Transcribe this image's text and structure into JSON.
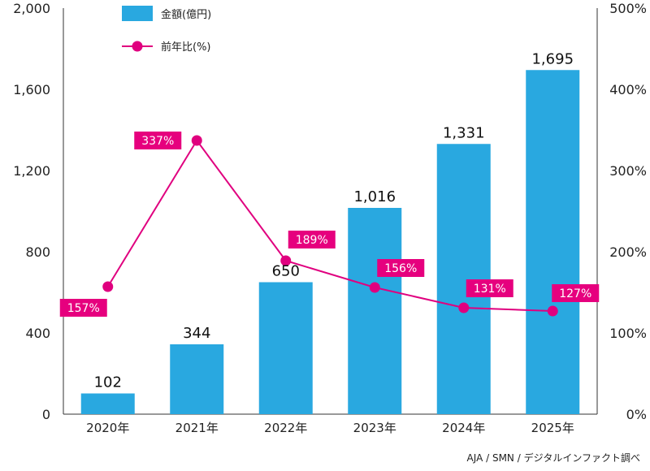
{
  "chart_data": {
    "type": "bar",
    "categories": [
      "2020年",
      "2021年",
      "2022年",
      "2023年",
      "2024年",
      "2025年"
    ],
    "series": [
      {
        "name": "金額(億円)",
        "type": "bar",
        "axis": "left",
        "values": [
          102,
          344,
          650,
          1016,
          1331,
          1695
        ],
        "value_labels": [
          "102",
          "344",
          "650",
          "1,016",
          "1,331",
          "1,695"
        ]
      },
      {
        "name": "前年比(%)",
        "type": "line",
        "axis": "right",
        "values": [
          157,
          337,
          189,
          156,
          131,
          127
        ],
        "value_labels": [
          "157%",
          "337%",
          "189%",
          "156%",
          "131%",
          "127%"
        ]
      }
    ],
    "y_left": {
      "range": [
        0,
        2000
      ],
      "ticks": [
        "0",
        "400",
        "800",
        "1,200",
        "1,600",
        "2,000"
      ]
    },
    "y_right": {
      "range": [
        0,
        500
      ],
      "ticks": [
        "0%",
        "100%",
        "200%",
        "300%",
        "400%",
        "500%"
      ]
    },
    "legend": {
      "position": "top-left",
      "items": [
        "金額(億円)",
        "前年比(%)"
      ]
    },
    "grid": false,
    "colors": {
      "bar": "#29a8e0",
      "line": "#e0007f",
      "label_bg": "#e6007e"
    },
    "source": "AJA / SMN / デジタルインファクト調べ"
  }
}
